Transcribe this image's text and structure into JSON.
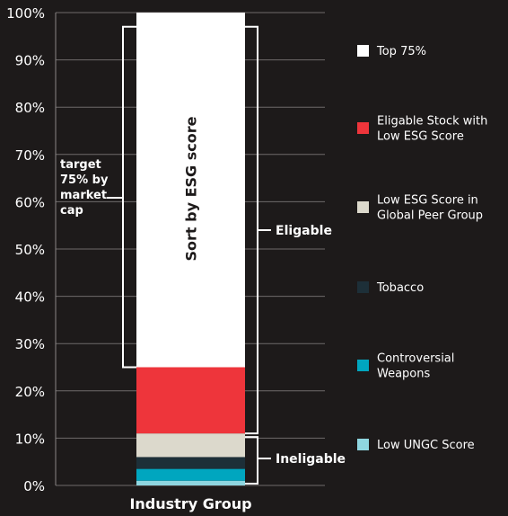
{
  "chart_data": {
    "type": "bar",
    "stacked": true,
    "categories": [
      "Industry Group"
    ],
    "xlabel": "Industry Group",
    "ylabel": "",
    "ylim": [
      0,
      100
    ],
    "y_ticks": [
      "0%",
      "10%",
      "20%",
      "30%",
      "40%",
      "50%",
      "60%",
      "70%",
      "80%",
      "90%",
      "100%"
    ],
    "grid": true,
    "legend_position": "right",
    "series": [
      {
        "name": "Low UNGC Score",
        "values": [
          1
        ],
        "color": "#8fd6e0"
      },
      {
        "name": "Controversial Weapons",
        "values": [
          2.5
        ],
        "color": "#00a6bf"
      },
      {
        "name": "Tobacco",
        "values": [
          2.5
        ],
        "color": "#1d2f38"
      },
      {
        "name": "Low ESG Score in Global Peer Group",
        "values": [
          5
        ],
        "color": "#dcd9cc"
      },
      {
        "name": "Eligable Stock with Low ESG Score",
        "values": [
          14
        ],
        "color": "#ee353b"
      },
      {
        "name": "Top 75%",
        "values": [
          75
        ],
        "color": "#ffffff"
      }
    ],
    "legend_order": [
      "Top 75%",
      "Eligable Stock with Low ESG Score",
      "Low ESG Score in Global Peer Group",
      "Tobacco",
      "Controversial Weapons",
      "Low UNGC Score"
    ],
    "annotations": {
      "bar_text": "Sort by ESG score",
      "target_lines": [
        "target",
        "75% by",
        "market",
        "cap"
      ],
      "eligible_label": "Eligable",
      "ineligible_label": "Ineligable",
      "target_range": [
        25,
        97
      ],
      "eligible_range": [
        11,
        97
      ],
      "ineligible_range": [
        0,
        11
      ]
    }
  }
}
